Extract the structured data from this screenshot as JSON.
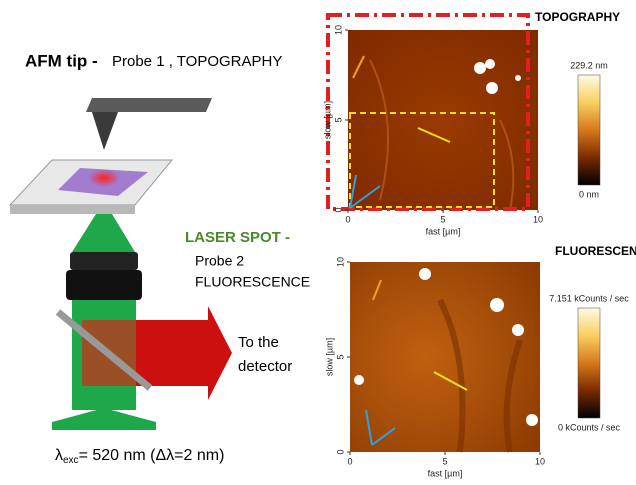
{
  "left": {
    "afm_label": "AFM tip -",
    "afm_probe": "Probe 1 , TOPOGRAPHY",
    "laser_label": "LASER SPOT -",
    "laser_probe_1": "Probe 2",
    "laser_probe_2": "FLUORESCENCE",
    "detector_1": "To the",
    "detector_2": "detector",
    "excitation_symbol": "λ",
    "excitation_sub": "exc",
    "excitation_rest": "= 520 nm (Δλ=2 nm)"
  },
  "panels": [
    {
      "title": "TOPOGRAPHY",
      "x_label": "fast [µm]",
      "y_label": "slow [µm]",
      "x_ticks": [
        0,
        5,
        10
      ],
      "y_ticks": [
        0,
        5,
        10
      ],
      "colorbar_max": "229.2 nm",
      "colorbar_min": "0 nm"
    },
    {
      "title": "FLUORESCENCE",
      "x_label": "fast [µm]",
      "y_label": "slow [µm]",
      "x_ticks": [
        0,
        5,
        10
      ],
      "y_ticks": [
        0,
        5,
        10
      ],
      "colorbar_max": "7.151 kCounts / sec",
      "colorbar_min": "0 kCounts / sec"
    }
  ]
}
